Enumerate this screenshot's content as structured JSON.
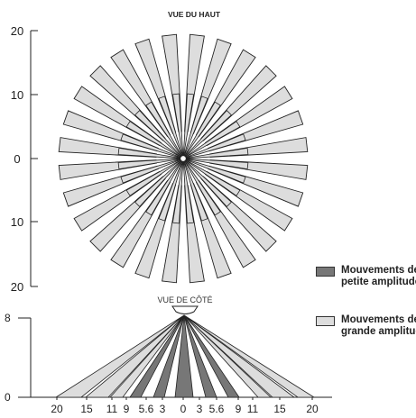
{
  "top_view": {
    "title": "VUE DU HAUT",
    "y_ticks": [
      "20",
      "10",
      "0",
      "10",
      "20"
    ]
  },
  "side_view": {
    "title": "VUE DE CÔTÉ",
    "y_ticks": [
      "8",
      "0"
    ],
    "x_ticks": [
      "20",
      "15",
      "11",
      "9",
      "5.6",
      "3",
      "0",
      "3",
      "5.6",
      "9",
      "11",
      "15",
      "20"
    ]
  },
  "legend": {
    "small": {
      "label": "Mouvements de petite amplitude",
      "color": "#777777"
    },
    "large": {
      "label": "Mouvements de grande amplitude",
      "color": "#dddddd"
    }
  }
}
